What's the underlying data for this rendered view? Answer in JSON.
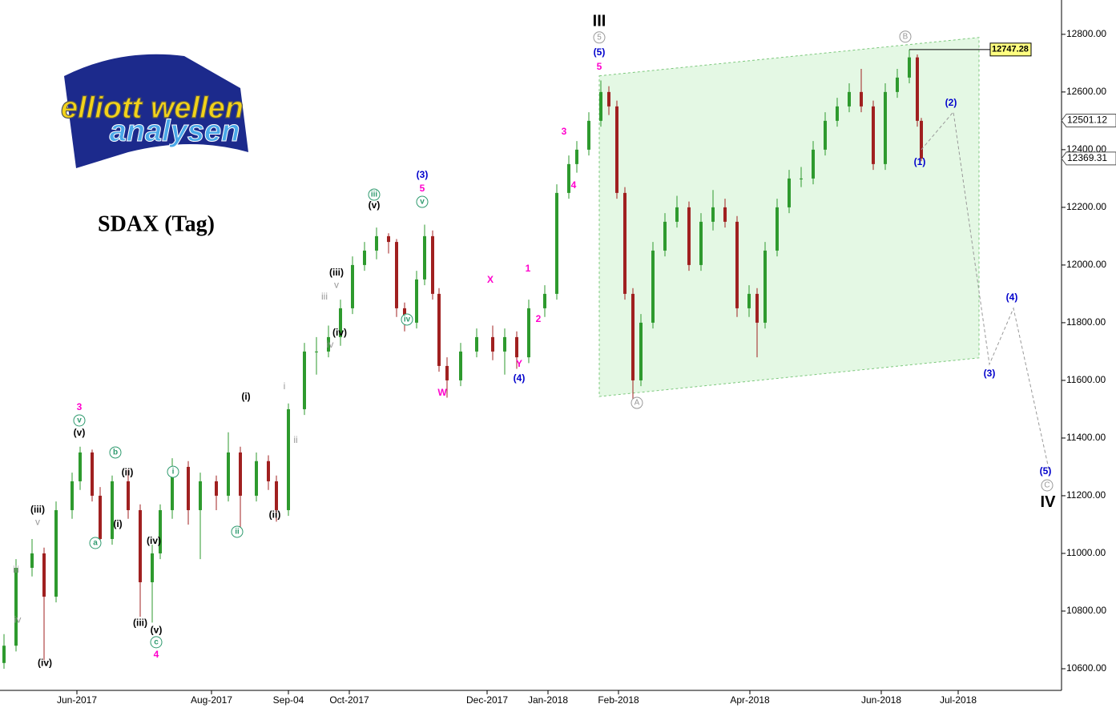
{
  "chart_data": {
    "type": "candlestick",
    "title": "SDAX (Tag)",
    "logo": {
      "line1": "elliott wellen",
      "line2": "analysen"
    },
    "up_color": "#2e9a2e",
    "down_color": "#a02020",
    "xlim": [
      0,
      331.25
    ],
    "ylim": [
      10525,
      12919
    ],
    "xticks": [
      {
        "value": 24,
        "label": "Jun-2017"
      },
      {
        "value": 66,
        "label": "Aug-2017"
      },
      {
        "value": 90,
        "label": "Sep-04"
      },
      {
        "value": 109,
        "label": "Oct-2017"
      },
      {
        "value": 152,
        "label": "Dec-2017"
      },
      {
        "value": 171,
        "label": "Jan-2018"
      },
      {
        "value": 193,
        "label": "Feb-2018"
      },
      {
        "value": 234,
        "label": "Apr-2018"
      },
      {
        "value": 275,
        "label": "Jun-2018"
      },
      {
        "value": 299,
        "label": "Jul-2018"
      }
    ],
    "yticks": [
      {
        "value": 10600,
        "label": "10600.00"
      },
      {
        "value": 10800,
        "label": "10800.00"
      },
      {
        "value": 11000,
        "label": "11000.00"
      },
      {
        "value": 11200,
        "label": "11200.00"
      },
      {
        "value": 11400,
        "label": "11400.00"
      },
      {
        "value": 11600,
        "label": "11600.00"
      },
      {
        "value": 11800,
        "label": "11800.00"
      },
      {
        "value": 12000,
        "label": "12000.00"
      },
      {
        "value": 12200,
        "label": "12200.00"
      },
      {
        "value": 12400,
        "label": "12400.00"
      },
      {
        "value": 12600,
        "label": "12600.00"
      },
      {
        "value": 12800,
        "label": "12800.00"
      }
    ],
    "ohlc": [
      [
        1.25,
        10620,
        10720,
        10600,
        10680
      ],
      [
        5,
        10680,
        10980,
        10660,
        10950
      ],
      [
        10,
        10950,
        11050,
        10920,
        11000
      ],
      [
        13.75,
        11000,
        11020,
        10630,
        10850
      ],
      [
        17.5,
        10850,
        11180,
        10830,
        11150
      ],
      [
        22.5,
        11150,
        11280,
        11120,
        11250
      ],
      [
        25,
        11250,
        11370,
        11220,
        11350
      ],
      [
        28.75,
        11350,
        11360,
        11180,
        11200
      ],
      [
        31.25,
        11200,
        11230,
        11030,
        11050
      ],
      [
        35,
        11050,
        11270,
        11030,
        11250
      ],
      [
        40,
        11250,
        11290,
        11120,
        11150
      ],
      [
        43.75,
        11150,
        11170,
        10780,
        10900
      ],
      [
        47.5,
        10900,
        11030,
        10760,
        11000
      ],
      [
        50,
        11000,
        11170,
        10980,
        11150
      ],
      [
        53.75,
        11150,
        11330,
        11120,
        11300
      ],
      [
        58.75,
        11300,
        11320,
        11100,
        11150
      ],
      [
        62.5,
        11150,
        11280,
        10980,
        11250
      ],
      [
        67.5,
        11250,
        11270,
        11150,
        11200
      ],
      [
        71.25,
        11200,
        11420,
        11180,
        11350
      ],
      [
        75,
        11350,
        11370,
        11080,
        11200
      ],
      [
        80,
        11200,
        11350,
        11180,
        11320
      ],
      [
        83.75,
        11320,
        11340,
        11220,
        11250
      ],
      [
        86.25,
        11250,
        11270,
        11110,
        11150
      ],
      [
        90,
        11150,
        11520,
        11130,
        11500
      ],
      [
        95,
        11500,
        11730,
        11480,
        11700
      ],
      [
        98.75,
        11700,
        11750,
        11620,
        11700
      ],
      [
        102.5,
        11700,
        11790,
        11680,
        11750
      ],
      [
        106.25,
        11750,
        11880,
        11720,
        11850
      ],
      [
        110,
        11850,
        12030,
        11830,
        12000
      ],
      [
        113.75,
        12000,
        12080,
        11980,
        12050
      ],
      [
        117.5,
        12050,
        12130,
        12020,
        12100
      ],
      [
        121.25,
        12100,
        12110,
        12040,
        12080
      ],
      [
        123.75,
        12080,
        12090,
        11820,
        11850
      ],
      [
        126.25,
        11850,
        11870,
        11770,
        11800
      ],
      [
        130,
        11800,
        11980,
        11780,
        11950
      ],
      [
        132.5,
        11950,
        12140,
        11930,
        12100
      ],
      [
        135,
        12100,
        12120,
        11880,
        11900
      ],
      [
        137,
        11900,
        11920,
        11630,
        11650
      ],
      [
        139.5,
        11650,
        11680,
        11540,
        11600
      ],
      [
        143.75,
        11600,
        11730,
        11580,
        11700
      ],
      [
        148.75,
        11700,
        11780,
        11680,
        11750
      ],
      [
        153.75,
        11750,
        11790,
        11670,
        11700
      ],
      [
        157.5,
        11700,
        11780,
        11620,
        11750
      ],
      [
        161.25,
        11750,
        11770,
        11640,
        11680
      ],
      [
        165,
        11680,
        11880,
        11660,
        11850
      ],
      [
        170,
        11850,
        11930,
        11820,
        11900
      ],
      [
        173.75,
        11900,
        12280,
        11880,
        12250
      ],
      [
        177.5,
        12250,
        12380,
        12230,
        12350
      ],
      [
        180,
        12350,
        12430,
        12320,
        12400
      ],
      [
        183.75,
        12400,
        12530,
        12380,
        12500
      ],
      [
        187.5,
        12500,
        12640,
        12480,
        12600
      ],
      [
        190,
        12600,
        12620,
        12520,
        12550
      ],
      [
        192.5,
        12550,
        12570,
        12230,
        12250
      ],
      [
        195,
        12250,
        12270,
        11880,
        11900
      ],
      [
        197.5,
        11900,
        11920,
        11520,
        11600
      ],
      [
        200,
        11600,
        11830,
        11580,
        11800
      ],
      [
        203.75,
        11800,
        12080,
        11780,
        12050
      ],
      [
        207.5,
        12050,
        12180,
        12030,
        12150
      ],
      [
        211.25,
        12150,
        12240,
        12130,
        12200
      ],
      [
        215,
        12200,
        12220,
        11980,
        12000
      ],
      [
        218.75,
        12000,
        12180,
        11980,
        12150
      ],
      [
        222.5,
        12150,
        12260,
        12120,
        12200
      ],
      [
        226.25,
        12200,
        12230,
        12130,
        12150
      ],
      [
        230,
        12150,
        12170,
        11820,
        11850
      ],
      [
        233.75,
        11850,
        11930,
        11820,
        11900
      ],
      [
        236.25,
        11900,
        11920,
        11680,
        11800
      ],
      [
        238.75,
        11800,
        12080,
        11780,
        12050
      ],
      [
        242.5,
        12050,
        12230,
        12030,
        12200
      ],
      [
        246.25,
        12200,
        12330,
        12180,
        12300
      ],
      [
        250,
        12300,
        12340,
        12270,
        12300
      ],
      [
        253.75,
        12300,
        12430,
        12280,
        12400
      ],
      [
        257.5,
        12400,
        12530,
        12380,
        12500
      ],
      [
        261.25,
        12500,
        12580,
        12480,
        12550
      ],
      [
        265,
        12550,
        12630,
        12530,
        12600
      ],
      [
        268.75,
        12600,
        12680,
        12530,
        12550
      ],
      [
        272.5,
        12550,
        12570,
        12330,
        12350
      ],
      [
        276.25,
        12350,
        12630,
        12330,
        12600
      ],
      [
        280,
        12600,
        12680,
        12580,
        12650
      ],
      [
        283.75,
        12650,
        12747.28,
        12630,
        12720
      ],
      [
        286.25,
        12720,
        12730,
        12480,
        12500
      ],
      [
        287.5,
        12500,
        12510,
        12360,
        12369.31
      ]
    ],
    "channel": {
      "color": "#d8f5d8",
      "upper": [
        [
          187,
          12656
        ],
        [
          305.5,
          12789
        ]
      ],
      "lower": [
        [
          187,
          11544
        ],
        [
          305.5,
          11678
        ]
      ]
    },
    "forecast": {
      "x": [
        287.5,
        297.5,
        308.75,
        316.25,
        327.5
      ],
      "y": [
        12400,
        12531,
        11656,
        11850,
        11281
      ]
    },
    "price_labels": [
      {
        "value": 12747.28,
        "background": "#ffff80"
      },
      {
        "value": 12501.12,
        "background": "#ffffff"
      },
      {
        "value": 12369.31,
        "background": "#ffffff"
      }
    ],
    "annotations": [
      {
        "text": "III",
        "x": 187,
        "y": 12844,
        "color": "#000000",
        "bold": true
      },
      {
        "text": "5",
        "x": 187,
        "y": 12789,
        "color": "#999999",
        "circled": true
      },
      {
        "text": "(5)",
        "x": 187,
        "y": 12736,
        "color": "#0000cc"
      },
      {
        "text": "5",
        "x": 187,
        "y": 12686,
        "color": "#ff00cc"
      },
      {
        "text": "3",
        "x": 176,
        "y": 12461,
        "color": "#ff00cc"
      },
      {
        "text": "4",
        "x": 179,
        "y": 12275,
        "color": "#ff00cc"
      },
      {
        "text": "(3)",
        "x": 131.75,
        "y": 12311,
        "color": "#0000cc"
      },
      {
        "text": "5",
        "x": 131.75,
        "y": 12264,
        "color": "#ff00cc"
      },
      {
        "text": "v",
        "x": 131.75,
        "y": 12219,
        "color": "#2e9a6e",
        "circled": true
      },
      {
        "text": "iii",
        "x": 116.75,
        "y": 12244,
        "color": "#2e9a6e",
        "circled": true
      },
      {
        "text": "(v)",
        "x": 116.75,
        "y": 12206,
        "color": "#000000"
      },
      {
        "text": "X",
        "x": 153,
        "y": 11947,
        "color": "#ff00cc"
      },
      {
        "text": "1",
        "x": 164.75,
        "y": 11986,
        "color": "#ff00cc"
      },
      {
        "text": "2",
        "x": 168,
        "y": 11811,
        "color": "#ff00cc"
      },
      {
        "text": "W",
        "x": 138,
        "y": 11556,
        "color": "#ff00cc"
      },
      {
        "text": "Y",
        "x": 162,
        "y": 11656,
        "color": "#ff00cc"
      },
      {
        "text": "(4)",
        "x": 162,
        "y": 11606,
        "color": "#0000cc"
      },
      {
        "text": "(iii)",
        "x": 105,
        "y": 11972,
        "color": "#000000"
      },
      {
        "text": "v",
        "x": 105,
        "y": 11930,
        "color": "#999999"
      },
      {
        "text": "iii",
        "x": 101.25,
        "y": 11889,
        "color": "#999999"
      },
      {
        "text": "(iv)",
        "x": 106,
        "y": 11764,
        "color": "#000000"
      },
      {
        "text": "iv",
        "x": 103,
        "y": 11722,
        "color": "#999999"
      },
      {
        "text": "i",
        "x": 88.75,
        "y": 11578,
        "color": "#999999"
      },
      {
        "text": "ii",
        "x": 92.25,
        "y": 11392,
        "color": "#999999"
      },
      {
        "text": "(i)",
        "x": 76.75,
        "y": 11542,
        "color": "#000000"
      },
      {
        "text": "(ii)",
        "x": 85.75,
        "y": 11133,
        "color": "#000000"
      },
      {
        "text": "ii",
        "x": 74,
        "y": 11075,
        "color": "#2e9a6e",
        "circled": true
      },
      {
        "text": "i",
        "x": 54,
        "y": 11283,
        "color": "#2e9a6e",
        "circled": true
      },
      {
        "text": "iv",
        "x": 127,
        "y": 11811,
        "color": "#2e9a6e",
        "circled": true
      },
      {
        "text": "3",
        "x": 24.75,
        "y": 11506,
        "color": "#ff00cc"
      },
      {
        "text": "v",
        "x": 24.75,
        "y": 11461,
        "color": "#2e9a6e",
        "circled": true
      },
      {
        "text": "(v)",
        "x": 24.75,
        "y": 11417,
        "color": "#000000"
      },
      {
        "text": "b",
        "x": 36,
        "y": 11350,
        "color": "#2e9a6e",
        "circled": true
      },
      {
        "text": "(ii)",
        "x": 39.75,
        "y": 11280,
        "color": "#000000"
      },
      {
        "text": "(i)",
        "x": 36.75,
        "y": 11100,
        "color": "#000000"
      },
      {
        "text": "a",
        "x": 29.75,
        "y": 11036,
        "color": "#2e9a6e",
        "circled": true
      },
      {
        "text": "(iii)",
        "x": 11.75,
        "y": 11150,
        "color": "#000000"
      },
      {
        "text": "v",
        "x": 11.75,
        "y": 11108,
        "color": "#999999"
      },
      {
        "text": "iii",
        "x": 5,
        "y": 10942,
        "color": "#999999"
      },
      {
        "text": "iv",
        "x": 5.5,
        "y": 10769,
        "color": "#999999"
      },
      {
        "text": "(iv)",
        "x": 14,
        "y": 10619,
        "color": "#000000"
      },
      {
        "text": "(iv)",
        "x": 48,
        "y": 11042,
        "color": "#000000"
      },
      {
        "text": "(iii)",
        "x": 43.75,
        "y": 10758,
        "color": "#000000"
      },
      {
        "text": "(v)",
        "x": 48.75,
        "y": 10733,
        "color": "#000000"
      },
      {
        "text": "c",
        "x": 48.75,
        "y": 10692,
        "color": "#2e9a6e",
        "circled": true
      },
      {
        "text": "4",
        "x": 48.75,
        "y": 10647,
        "color": "#ff00cc"
      },
      {
        "text": "A",
        "x": 198.75,
        "y": 11522,
        "color": "#999999",
        "circled": true
      },
      {
        "text": "B",
        "x": 282.5,
        "y": 12792,
        "color": "#999999",
        "circled": true
      },
      {
        "text": "(1)",
        "x": 287,
        "y": 12356,
        "color": "#0000cc"
      },
      {
        "text": "(2)",
        "x": 296.75,
        "y": 12561,
        "color": "#0000cc"
      },
      {
        "text": "(3)",
        "x": 308.75,
        "y": 11622,
        "color": "#0000cc"
      },
      {
        "text": "(4)",
        "x": 315.75,
        "y": 11886,
        "color": "#0000cc"
      },
      {
        "text": "(5)",
        "x": 326.25,
        "y": 11283,
        "color": "#0000cc"
      },
      {
        "text": "C",
        "x": 326.75,
        "y": 11236,
        "color": "#999999",
        "circled": true
      },
      {
        "text": "IV",
        "x": 327,
        "y": 11175,
        "color": "#000000",
        "bold": true
      }
    ]
  }
}
